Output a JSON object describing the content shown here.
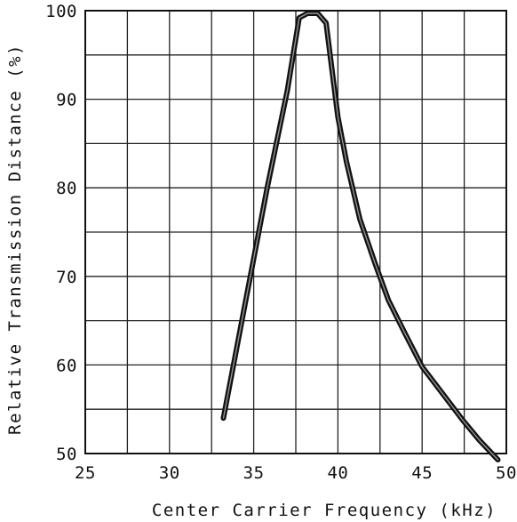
{
  "chart_data": {
    "type": "line",
    "title": "",
    "xlabel": "Center Carrier Frequency  (kHz)",
    "ylabel": "Relative Transmission Distance (%)",
    "xlim": [
      25,
      50
    ],
    "ylim": [
      50,
      100
    ],
    "x_ticks": [
      25,
      30,
      35,
      40,
      45,
      50
    ],
    "y_ticks": [
      50,
      60,
      70,
      80,
      90,
      100
    ],
    "x_tick_labels": [
      "25",
      "30",
      "35",
      "40",
      "45",
      "50"
    ],
    "y_tick_labels": [
      "50",
      "60",
      "70",
      "80",
      "90",
      "100"
    ],
    "x_minor_step": 2.5,
    "y_minor_step": 5,
    "grid": true,
    "legend": "none",
    "line_color": "#111111",
    "series": [
      {
        "x": [
          33.2,
          34.5,
          35.8,
          37.0,
          37.7,
          38.2,
          38.8,
          39.3,
          40.0,
          40.5,
          41.3,
          42.2,
          43.0,
          44.0,
          45.0,
          46.2,
          47.4,
          48.4,
          49.5
        ],
        "y": [
          54,
          67,
          80,
          91,
          99.2,
          99.7,
          99.7,
          98.6,
          88,
          83,
          76.5,
          71.5,
          67.3,
          63.5,
          59.8,
          56.8,
          53.8,
          51.5,
          49.3
        ]
      }
    ]
  }
}
